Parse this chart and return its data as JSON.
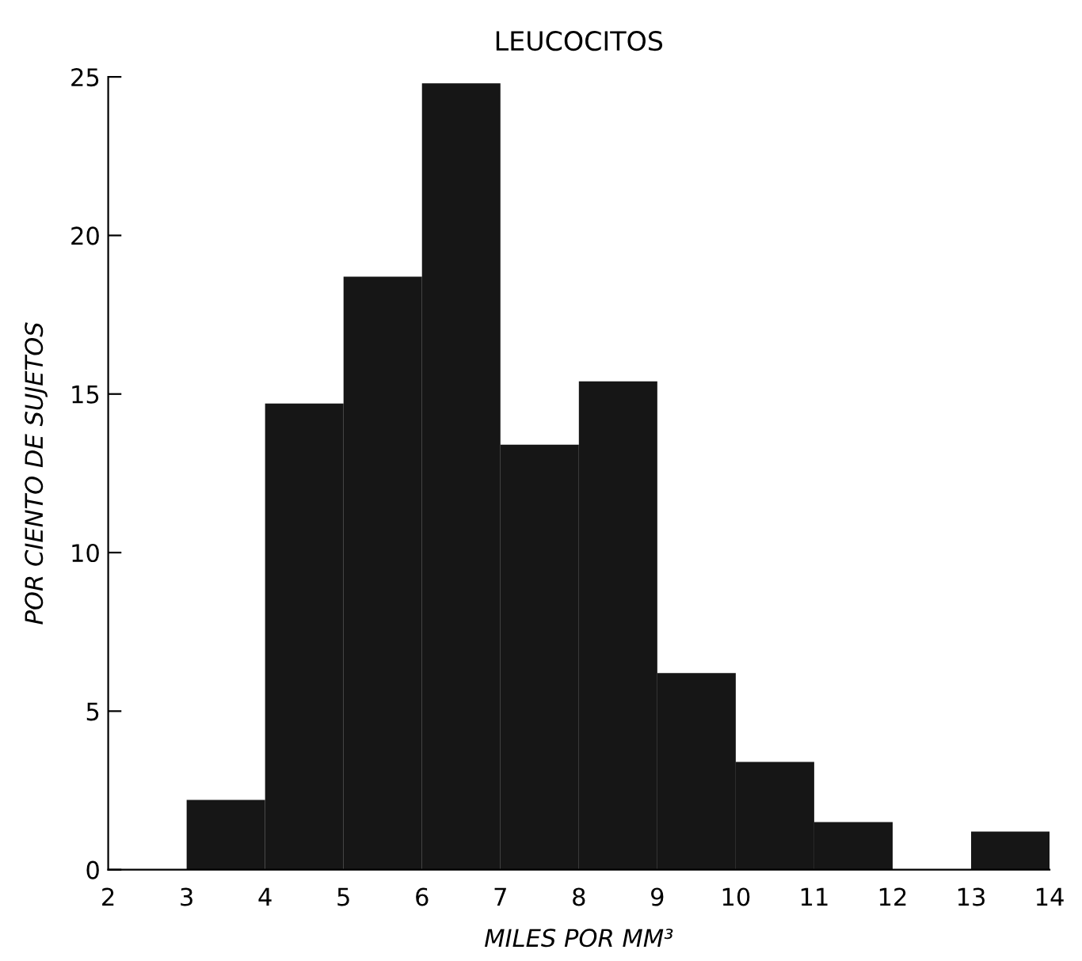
{
  "chart_data": {
    "type": "histogram",
    "title": "LEUCOCITOS",
    "xlabel": "MILES POR MM³",
    "ylabel": "POR CIENTO DE SUJETOS",
    "bins": [
      3,
      4,
      5,
      6,
      7,
      8,
      9,
      10,
      11,
      12,
      13,
      14
    ],
    "values": [
      2.2,
      14.7,
      18.7,
      24.8,
      13.4,
      15.4,
      6.2,
      3.4,
      1.5,
      0,
      1.2
    ],
    "color": "#161616",
    "xlim": [
      2,
      14
    ],
    "xticks": [
      2,
      3,
      4,
      5,
      6,
      7,
      8,
      9,
      10,
      11,
      12,
      13,
      14
    ],
    "ylim": [
      0,
      25
    ],
    "yticks": [
      0,
      5,
      10,
      15,
      20,
      25
    ],
    "grid": false
  }
}
